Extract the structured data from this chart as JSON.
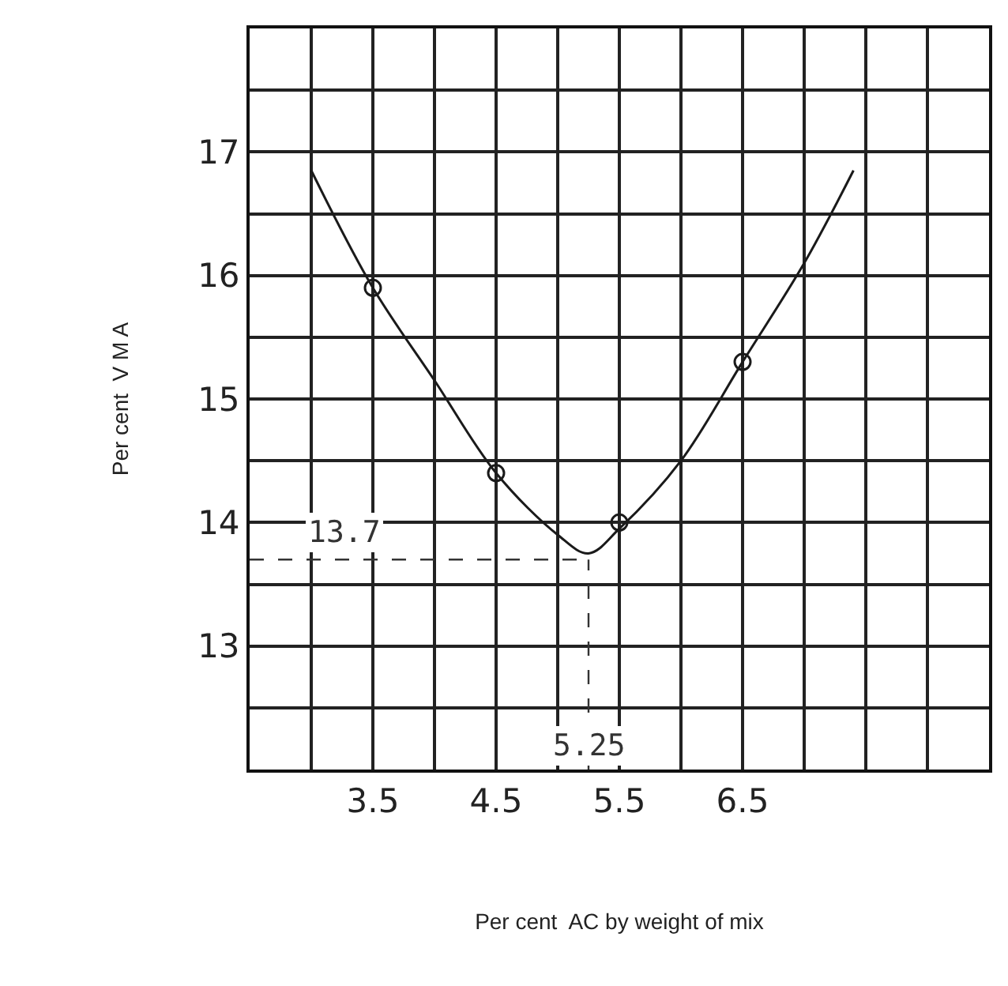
{
  "chart_data": {
    "type": "line",
    "xlabel": "Per cent  AC by weight of mix",
    "ylabel": "Per cent  V M A",
    "series": [
      {
        "color": "#1a1a1a",
        "marker": "none",
        "x": [
          3.0,
          3.5,
          4.0,
          4.5,
          5.0,
          5.25,
          5.5,
          6.0,
          6.5,
          7.0,
          7.4
        ],
        "values": [
          16.85,
          15.9,
          15.15,
          14.4,
          13.9,
          13.75,
          13.95,
          14.5,
          15.3,
          16.1,
          16.85
        ]
      },
      {
        "type": "scatter",
        "color": "#1a1a1a",
        "marker": "circle",
        "x": [
          3.5,
          4.5,
          5.5,
          6.5
        ],
        "values": [
          15.9,
          14.4,
          14.0,
          15.3
        ]
      }
    ],
    "ref_lines": [
      {
        "axis": "y",
        "value": 13.7,
        "label": "13.7",
        "line_style": "dashed"
      },
      {
        "axis": "x",
        "value": 5.25,
        "label": "5.25",
        "line_style": "dashed"
      }
    ],
    "xlim": [
      2.5,
      8.5
    ],
    "ylim": [
      12,
      18
    ],
    "xticks": [
      {
        "value": 2.5,
        "label": null
      },
      {
        "value": 3.0,
        "label": null
      },
      3.5,
      {
        "value": 4.0,
        "label": null
      },
      4.5,
      {
        "value": 5.0,
        "label": null
      },
      5.5,
      {
        "value": 6.0,
        "label": null
      },
      6.5,
      {
        "value": 7.0,
        "label": null
      },
      {
        "value": 7.5,
        "label": null
      },
      {
        "value": 8.0,
        "label": null
      },
      {
        "value": 8.5,
        "label": null
      }
    ],
    "yticks": [
      {
        "value": 12,
        "label": null
      },
      {
        "value": 12.5,
        "label": null
      },
      13,
      {
        "value": 13.5,
        "label": null
      },
      14,
      {
        "value": 14.5,
        "label": null
      },
      15,
      {
        "value": 15.5,
        "label": null
      },
      16,
      {
        "value": 16.5,
        "label": null
      },
      17,
      {
        "value": 17.5,
        "label": null
      },
      {
        "value": 18,
        "label": null
      }
    ],
    "grid": true
  }
}
